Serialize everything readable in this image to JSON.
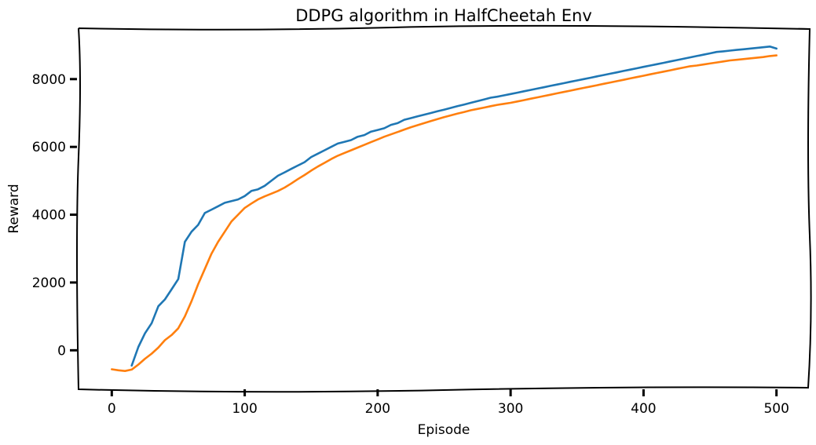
{
  "chart_data": {
    "type": "line",
    "title": "DDPG algorithm in HalfCheetah Env",
    "xlabel": "Episode",
    "ylabel": "Reward",
    "xlim": [
      -25,
      525
    ],
    "ylim": [
      -1150,
      9500
    ],
    "xticks": [
      0,
      100,
      200,
      300,
      400,
      500
    ],
    "yticks": [
      0,
      2000,
      4000,
      6000,
      8000
    ],
    "grid": false,
    "legend": "none",
    "colors": {
      "raw": "#1f77b4",
      "smoothed": "#ff7f0e"
    },
    "series": [
      {
        "key": "raw",
        "x": [
          0,
          5,
          10,
          15,
          20,
          25,
          30,
          35,
          40,
          45,
          50,
          55,
          60,
          65,
          70,
          75,
          80,
          85,
          90,
          95,
          100,
          105,
          110,
          115,
          120,
          125,
          130,
          135,
          140,
          145,
          150,
          155,
          160,
          165,
          170,
          175,
          180,
          185,
          190,
          195,
          200,
          205,
          210,
          215,
          220,
          225,
          230,
          235,
          240,
          245,
          250,
          255,
          260,
          265,
          270,
          275,
          280,
          285,
          290,
          295,
          300,
          305,
          310,
          315,
          320,
          325,
          330,
          335,
          340,
          345,
          350,
          355,
          360,
          365,
          370,
          375,
          380,
          385,
          390,
          395,
          400,
          405,
          410,
          415,
          420,
          425,
          430,
          435,
          440,
          445,
          450,
          455,
          460,
          465,
          470,
          475,
          480,
          485,
          490,
          495,
          500
        ],
        "values": [
          null,
          null,
          null,
          -450,
          100,
          500,
          800,
          1300,
          1500,
          1800,
          2100,
          3200,
          3500,
          3700,
          4050,
          4150,
          4250,
          4350,
          4400,
          4450,
          4550,
          4700,
          4750,
          4850,
          5000,
          5150,
          5250,
          5350,
          5450,
          5550,
          5700,
          5800,
          5900,
          6000,
          6100,
          6150,
          6200,
          6300,
          6350,
          6450,
          6500,
          6550,
          6650,
          6700,
          6800,
          6850,
          6900,
          6950,
          7000,
          7050,
          7100,
          7150,
          7200,
          7250,
          7300,
          7350,
          7400,
          7450,
          7480,
          7520,
          7560,
          7600,
          7640,
          7680,
          7720,
          7760,
          7800,
          7840,
          7880,
          7920,
          7960,
          8000,
          8040,
          8080,
          8120,
          8160,
          8200,
          8240,
          8280,
          8320,
          8360,
          8400,
          8440,
          8480,
          8520,
          8560,
          8600,
          8640,
          8680,
          8720,
          8760,
          8800,
          8820,
          8840,
          8860,
          8880,
          8900,
          8920,
          8940,
          8960,
          8900
        ]
      },
      {
        "key": "smoothed",
        "x": [
          0,
          5,
          10,
          15,
          20,
          25,
          30,
          35,
          40,
          45,
          50,
          55,
          60,
          65,
          70,
          75,
          80,
          85,
          90,
          95,
          100,
          105,
          110,
          115,
          120,
          125,
          130,
          135,
          140,
          145,
          150,
          155,
          160,
          165,
          170,
          175,
          180,
          185,
          190,
          195,
          200,
          205,
          210,
          215,
          220,
          225,
          230,
          235,
          240,
          245,
          250,
          255,
          260,
          265,
          270,
          275,
          280,
          285,
          290,
          295,
          300,
          305,
          310,
          315,
          320,
          325,
          330,
          335,
          340,
          345,
          350,
          355,
          360,
          365,
          370,
          375,
          380,
          385,
          390,
          395,
          400,
          405,
          410,
          415,
          420,
          425,
          430,
          435,
          440,
          445,
          450,
          455,
          460,
          465,
          470,
          475,
          480,
          485,
          490,
          495,
          500
        ],
        "values": [
          -560,
          -590,
          -610,
          -570,
          -420,
          -250,
          -100,
          80,
          300,
          450,
          650,
          1000,
          1450,
          1950,
          2400,
          2850,
          3200,
          3500,
          3800,
          4000,
          4200,
          4330,
          4450,
          4540,
          4620,
          4700,
          4800,
          4920,
          5050,
          5170,
          5300,
          5420,
          5530,
          5640,
          5740,
          5820,
          5900,
          5980,
          6060,
          6140,
          6220,
          6300,
          6370,
          6440,
          6510,
          6580,
          6640,
          6700,
          6760,
          6820,
          6880,
          6930,
          6980,
          7030,
          7080,
          7120,
          7160,
          7200,
          7240,
          7270,
          7300,
          7340,
          7380,
          7420,
          7460,
          7500,
          7540,
          7580,
          7620,
          7660,
          7700,
          7740,
          7780,
          7820,
          7860,
          7900,
          7940,
          7980,
          8020,
          8060,
          8100,
          8140,
          8180,
          8220,
          8260,
          8300,
          8340,
          8380,
          8400,
          8430,
          8460,
          8490,
          8520,
          8550,
          8570,
          8590,
          8610,
          8630,
          8650,
          8680,
          8700
        ]
      }
    ]
  }
}
